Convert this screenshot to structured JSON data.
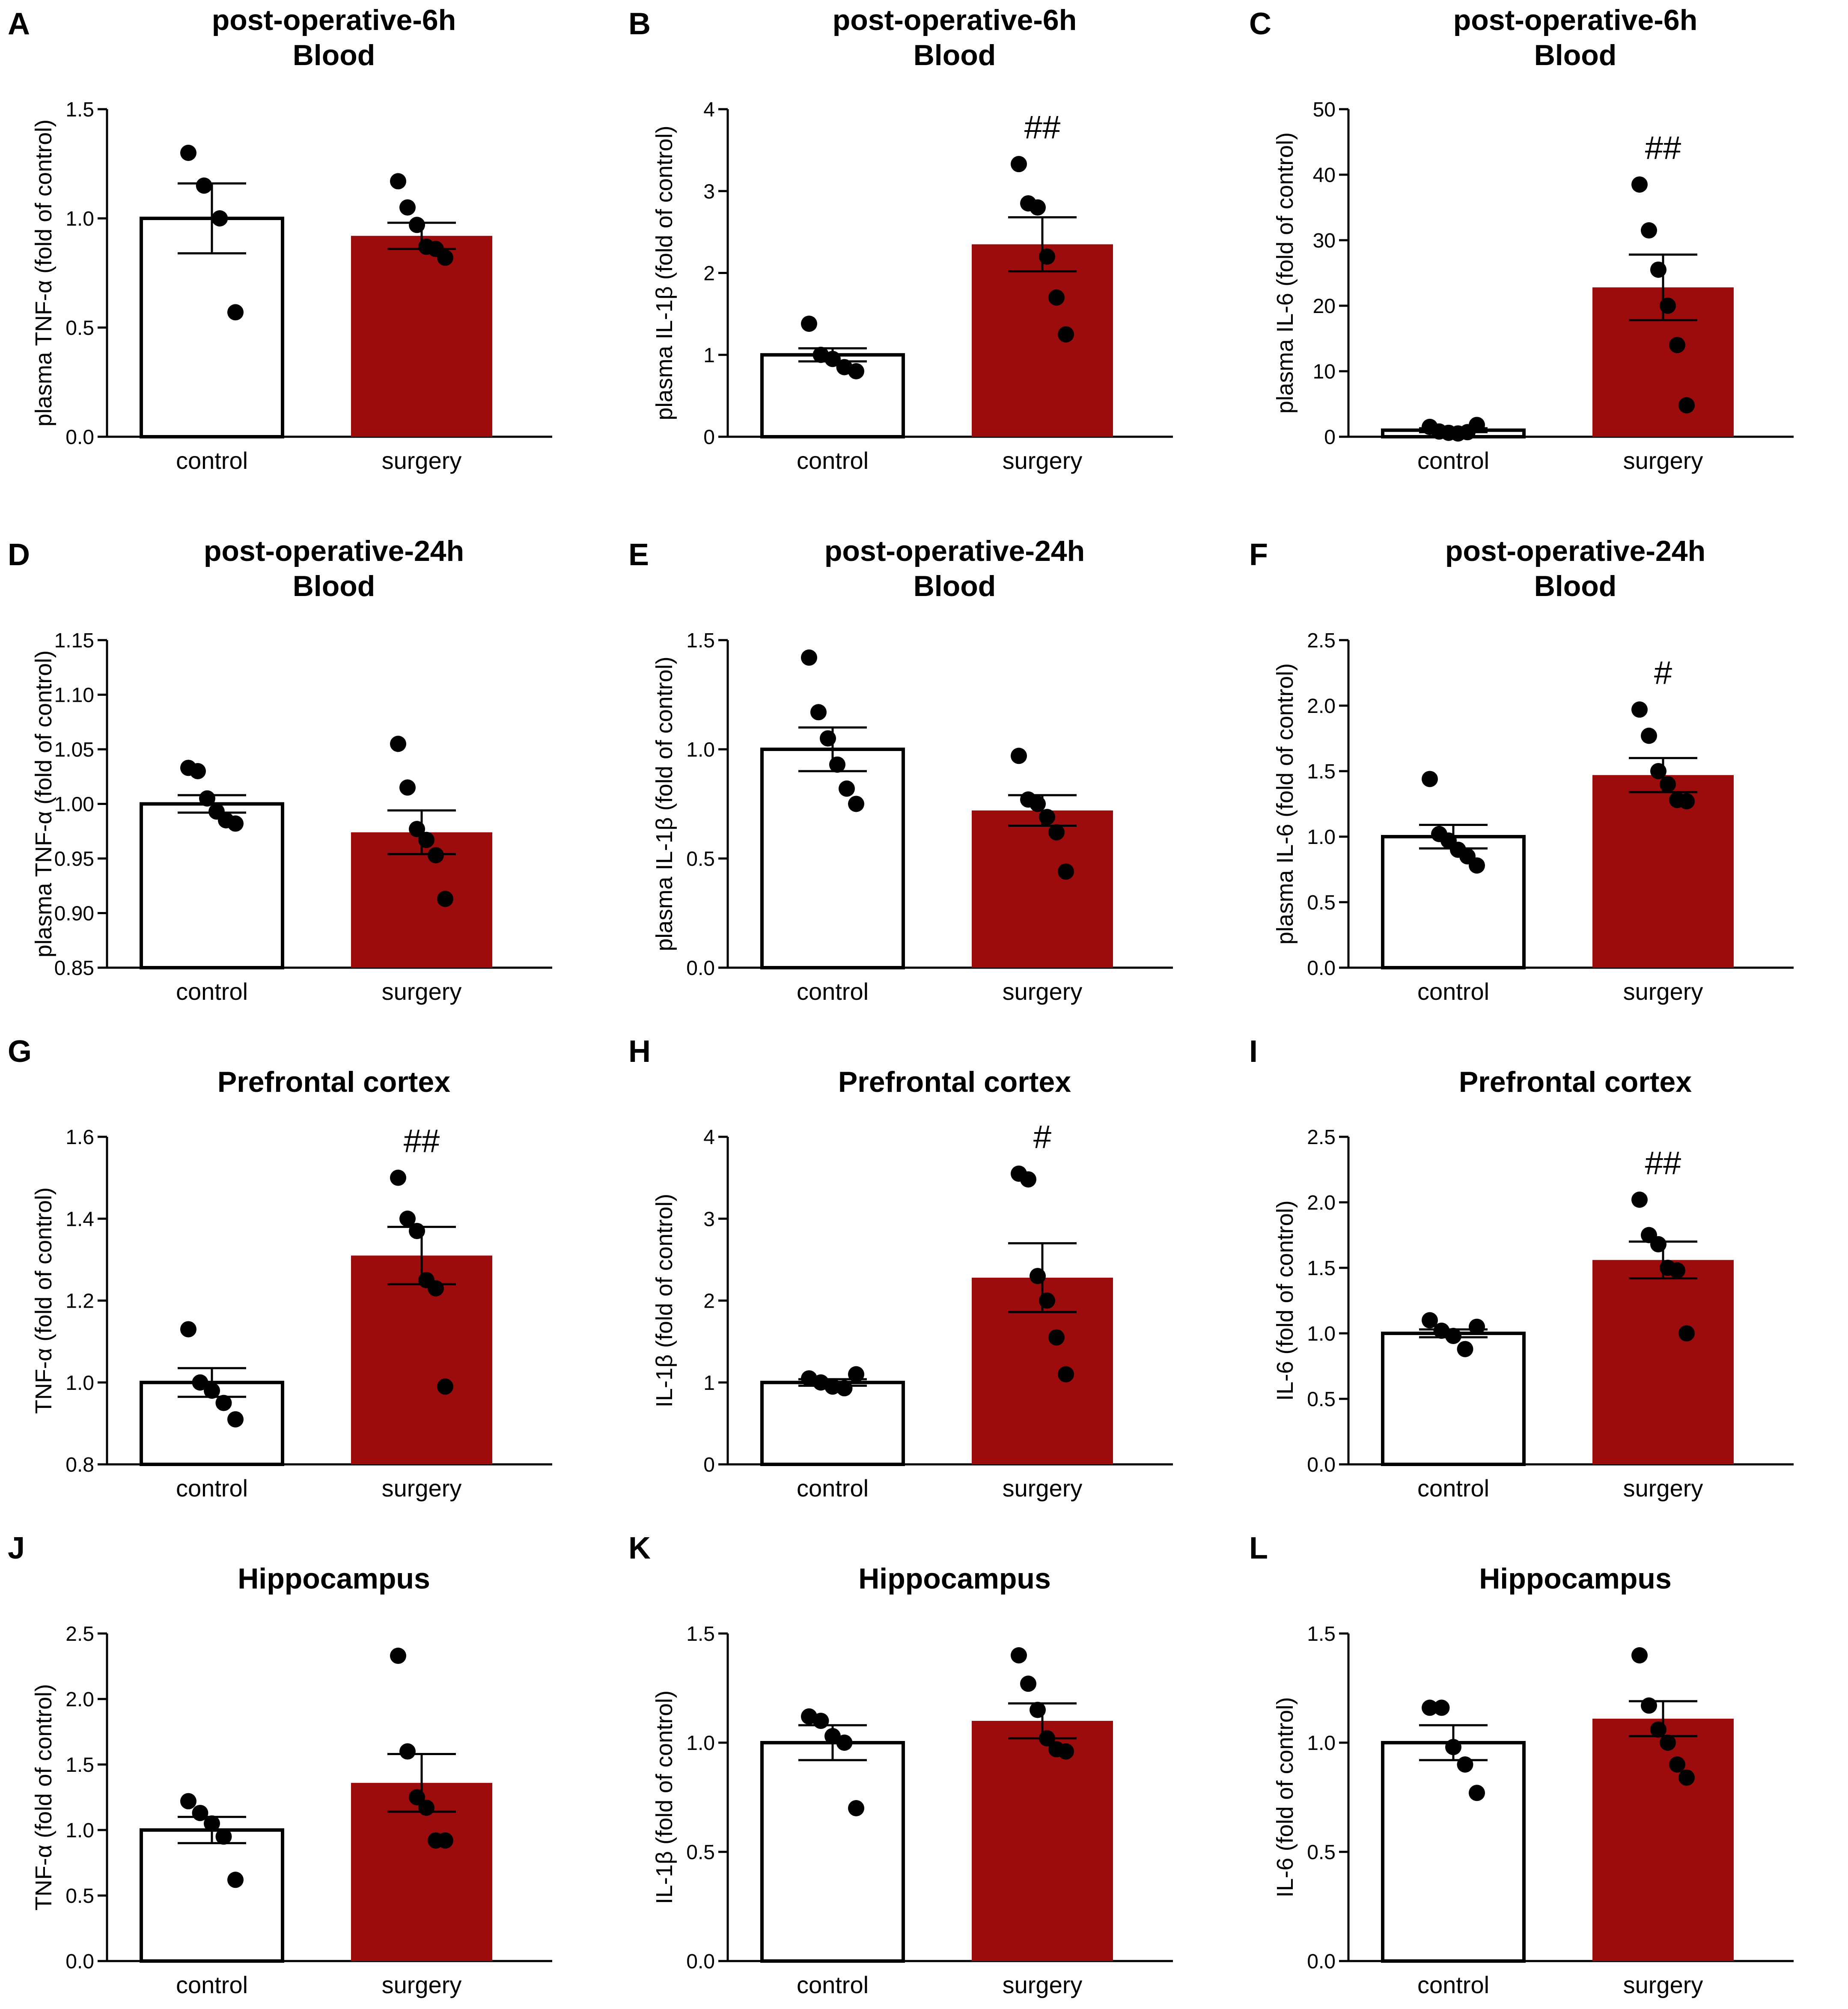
{
  "colors": {
    "control": "#ffffff",
    "surgery": "#9c0c0c",
    "ink": "#000000"
  },
  "chart_data": [
    {
      "id": "A",
      "letter": "A",
      "type": "bar",
      "title": [
        "post-operative-6h",
        "Blood"
      ],
      "ylabel": "plasma TNF-α (fold of control)",
      "ylim": [
        0,
        1.5
      ],
      "yticks": [
        0,
        0.5,
        1.0,
        1.5
      ],
      "ytick_labels": [
        "0.0",
        "0.5",
        "1.0",
        "1.5"
      ],
      "categories": [
        "control",
        "surgery"
      ],
      "means": [
        1.0,
        0.92
      ],
      "sem": [
        0.16,
        0.06
      ],
      "points": [
        [
          1.3,
          1.15,
          1.0,
          0.57
        ],
        [
          1.17,
          1.05,
          0.97,
          0.87,
          0.86,
          0.82
        ]
      ],
      "significance": [
        "",
        ""
      ]
    },
    {
      "id": "B",
      "letter": "B",
      "type": "bar",
      "title": [
        "post-operative-6h",
        "Blood"
      ],
      "ylabel": "plasma IL-1β (fold of control)",
      "ylim": [
        0,
        4
      ],
      "yticks": [
        0,
        1,
        2,
        3,
        4
      ],
      "ytick_labels": [
        "0",
        "1",
        "2",
        "3",
        "4"
      ],
      "categories": [
        "control",
        "surgery"
      ],
      "means": [
        1.0,
        2.35
      ],
      "sem": [
        0.08,
        0.33
      ],
      "points": [
        [
          1.38,
          1.0,
          0.95,
          0.85,
          0.8
        ],
        [
          3.33,
          2.85,
          2.8,
          2.2,
          1.7,
          1.25
        ]
      ],
      "significance": [
        "",
        "##"
      ]
    },
    {
      "id": "C",
      "letter": "C",
      "type": "bar",
      "title": [
        "post-operative-6h",
        "Blood"
      ],
      "ylabel": "plasma IL-6 (fold of control)",
      "ylim": [
        0,
        50
      ],
      "yticks": [
        0,
        10,
        20,
        30,
        40,
        50
      ],
      "ytick_labels": [
        "0",
        "10",
        "20",
        "30",
        "40",
        "50"
      ],
      "categories": [
        "control",
        "surgery"
      ],
      "means": [
        1.0,
        22.8
      ],
      "sem": [
        0.3,
        5.0
      ],
      "points": [
        [
          1.5,
          0.8,
          0.6,
          0.5,
          0.7,
          1.8
        ],
        [
          38.5,
          31.5,
          25.5,
          20.0,
          14.0,
          4.8
        ]
      ],
      "significance": [
        "",
        "##"
      ]
    },
    {
      "id": "D",
      "letter": "D",
      "type": "bar",
      "title": [
        "post-operative-24h",
        "Blood"
      ],
      "ylabel": "plasma TNF-α (fold of control)",
      "ylim": [
        0.85,
        1.15
      ],
      "yticks": [
        0.85,
        0.9,
        0.95,
        1.0,
        1.05,
        1.1,
        1.15
      ],
      "ytick_labels": [
        "0.85",
        "0.90",
        "0.95",
        "1.00",
        "1.05",
        "1.10",
        "1.15"
      ],
      "categories": [
        "control",
        "surgery"
      ],
      "means": [
        1.0,
        0.974
      ],
      "sem": [
        0.008,
        0.02
      ],
      "points": [
        [
          1.033,
          1.03,
          1.005,
          0.993,
          0.985,
          0.982
        ],
        [
          1.055,
          1.015,
          0.977,
          0.967,
          0.953,
          0.913
        ]
      ],
      "significance": [
        "",
        ""
      ]
    },
    {
      "id": "E",
      "letter": "E",
      "type": "bar",
      "title": [
        "post-operative-24h",
        "Blood"
      ],
      "ylabel": "plasma IL-1β (fold of control)",
      "ylim": [
        0,
        1.5
      ],
      "yticks": [
        0,
        0.5,
        1.0,
        1.5
      ],
      "ytick_labels": [
        "0.0",
        "0.5",
        "1.0",
        "1.5"
      ],
      "categories": [
        "control",
        "surgery"
      ],
      "means": [
        1.0,
        0.72
      ],
      "sem": [
        0.1,
        0.07
      ],
      "points": [
        [
          1.42,
          1.17,
          1.05,
          0.93,
          0.82,
          0.75
        ],
        [
          0.97,
          0.77,
          0.75,
          0.69,
          0.62,
          0.44
        ]
      ],
      "significance": [
        "",
        ""
      ]
    },
    {
      "id": "F",
      "letter": "F",
      "type": "bar",
      "title": [
        "post-operative-24h",
        "Blood"
      ],
      "ylabel": "plasma IL-6 (fold of control)",
      "ylim": [
        0,
        2.5
      ],
      "yticks": [
        0,
        0.5,
        1.0,
        1.5,
        2.0,
        2.5
      ],
      "ytick_labels": [
        "0.0",
        "0.5",
        "1.0",
        "1.5",
        "2.0",
        "2.5"
      ],
      "categories": [
        "control",
        "surgery"
      ],
      "means": [
        1.0,
        1.47
      ],
      "sem": [
        0.09,
        0.13
      ],
      "points": [
        [
          1.44,
          1.02,
          0.97,
          0.9,
          0.85,
          0.78
        ],
        [
          1.97,
          1.77,
          1.5,
          1.4,
          1.28,
          1.27
        ]
      ],
      "significance": [
        "",
        "#"
      ]
    },
    {
      "id": "G",
      "letter": "G",
      "type": "bar",
      "title": [
        "Prefrontal cortex"
      ],
      "ylabel": "TNF-α (fold of control)",
      "ylim": [
        0.8,
        1.6
      ],
      "yticks": [
        0.8,
        1.0,
        1.2,
        1.4,
        1.6
      ],
      "ytick_labels": [
        "0.8",
        "1.0",
        "1.2",
        "1.4",
        "1.6"
      ],
      "categories": [
        "control",
        "surgery"
      ],
      "means": [
        1.0,
        1.31
      ],
      "sem": [
        0.035,
        0.07
      ],
      "points": [
        [
          1.13,
          1.0,
          0.98,
          0.95,
          0.91
        ],
        [
          1.5,
          1.4,
          1.37,
          1.25,
          1.23,
          0.99
        ]
      ],
      "significance": [
        "",
        "##"
      ]
    },
    {
      "id": "H",
      "letter": "H",
      "type": "bar",
      "title": [
        "Prefrontal cortex"
      ],
      "ylabel": "IL-1β (fold of control)",
      "ylim": [
        0,
        4
      ],
      "yticks": [
        0,
        1,
        2,
        3,
        4
      ],
      "ytick_labels": [
        "0",
        "1",
        "2",
        "3",
        "4"
      ],
      "categories": [
        "control",
        "surgery"
      ],
      "means": [
        1.0,
        2.28
      ],
      "sem": [
        0.04,
        0.42
      ],
      "points": [
        [
          1.05,
          1.0,
          0.95,
          0.93,
          1.1
        ],
        [
          3.55,
          3.48,
          2.3,
          2.0,
          1.55,
          1.1
        ]
      ],
      "significance": [
        "",
        "#"
      ]
    },
    {
      "id": "I",
      "letter": "I",
      "type": "bar",
      "title": [
        "Prefrontal cortex"
      ],
      "ylabel": "IL-6 (fold of control)",
      "ylim": [
        0,
        2.5
      ],
      "yticks": [
        0,
        0.5,
        1.0,
        1.5,
        2.0,
        2.5
      ],
      "ytick_labels": [
        "0.0",
        "0.5",
        "1.0",
        "1.5",
        "2.0",
        "2.5"
      ],
      "categories": [
        "control",
        "surgery"
      ],
      "means": [
        1.0,
        1.56
      ],
      "sem": [
        0.03,
        0.14
      ],
      "points": [
        [
          1.1,
          1.02,
          0.98,
          0.88,
          1.05
        ],
        [
          2.02,
          1.75,
          1.68,
          1.5,
          1.48,
          1.0
        ]
      ],
      "significance": [
        "",
        "##"
      ]
    },
    {
      "id": "J",
      "letter": "J",
      "type": "bar",
      "title": [
        "Hippocampus"
      ],
      "ylabel": "TNF-α (fold of control)",
      "ylim": [
        0,
        2.5
      ],
      "yticks": [
        0,
        0.5,
        1.0,
        1.5,
        2.0,
        2.5
      ],
      "ytick_labels": [
        "0.0",
        "0.5",
        "1.0",
        "1.5",
        "2.0",
        "2.5"
      ],
      "categories": [
        "control",
        "surgery"
      ],
      "means": [
        1.0,
        1.36
      ],
      "sem": [
        0.1,
        0.22
      ],
      "points": [
        [
          1.22,
          1.13,
          1.05,
          0.95,
          0.62
        ],
        [
          2.33,
          1.6,
          1.25,
          1.17,
          0.92,
          0.92
        ]
      ],
      "significance": [
        "",
        ""
      ]
    },
    {
      "id": "K",
      "letter": "K",
      "type": "bar",
      "title": [
        "Hippocampus"
      ],
      "ylabel": "IL-1β (fold of control)",
      "ylim": [
        0,
        1.5
      ],
      "yticks": [
        0,
        0.5,
        1.0,
        1.5
      ],
      "ytick_labels": [
        "0.0",
        "0.5",
        "1.0",
        "1.5"
      ],
      "categories": [
        "control",
        "surgery"
      ],
      "means": [
        1.0,
        1.1
      ],
      "sem": [
        0.08,
        0.08
      ],
      "points": [
        [
          1.12,
          1.1,
          1.03,
          1.0,
          0.7
        ],
        [
          1.4,
          1.27,
          1.15,
          1.02,
          0.97,
          0.96
        ]
      ],
      "significance": [
        "",
        ""
      ]
    },
    {
      "id": "L",
      "letter": "L",
      "type": "bar",
      "title": [
        "Hippocampus"
      ],
      "ylabel": "IL-6 (fold of control)",
      "ylim": [
        0,
        1.5
      ],
      "yticks": [
        0,
        0.5,
        1.0,
        1.5
      ],
      "ytick_labels": [
        "0.0",
        "0.5",
        "1.0",
        "1.5"
      ],
      "categories": [
        "control",
        "surgery"
      ],
      "means": [
        1.0,
        1.11
      ],
      "sem": [
        0.08,
        0.08
      ],
      "points": [
        [
          1.16,
          1.16,
          0.98,
          0.9,
          0.77
        ],
        [
          1.4,
          1.17,
          1.06,
          1.0,
          0.9,
          0.84
        ]
      ],
      "significance": [
        "",
        ""
      ]
    }
  ]
}
